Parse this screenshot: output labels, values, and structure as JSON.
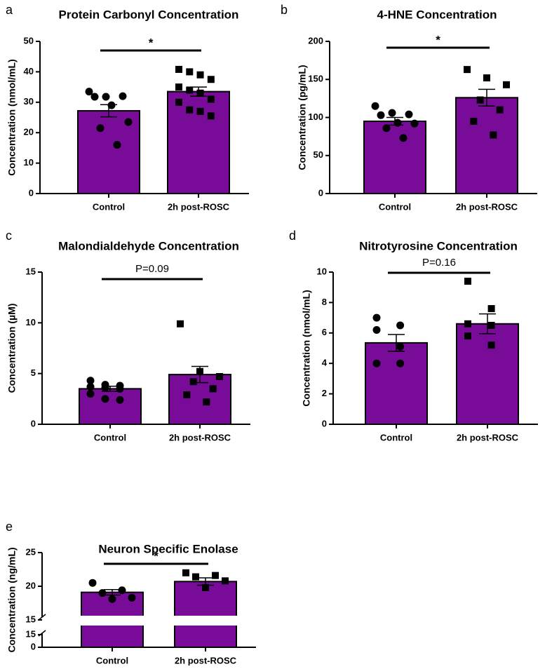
{
  "chart_data": [
    {
      "type": "bar",
      "panel": "a",
      "title": "Protein Carbonyl Concentration",
      "y_label": "Concentration (nmol/mL)",
      "categories": [
        "Control",
        "2h post-ROSC"
      ],
      "values": [
        27.2,
        33.5
      ],
      "errors": [
        2.0,
        1.5
      ],
      "points": [
        [
          33.5,
          31.8,
          32,
          31.8,
          29,
          23.5,
          21.5,
          16
        ],
        [
          40.8,
          40,
          39,
          37.5,
          35,
          34,
          33,
          31,
          30,
          27.5,
          27,
          25.5
        ]
      ],
      "markers": [
        "circle",
        "square"
      ],
      "color": "#780c99",
      "annotation": "*",
      "ylim": [
        0,
        50
      ],
      "yticks": [
        0,
        10,
        20,
        30,
        40,
        50
      ]
    },
    {
      "type": "bar",
      "panel": "b",
      "title": "4-HNE Concentration",
      "y_label": "Concentration (pg/mL)",
      "categories": [
        "Control",
        "2h post-ROSC"
      ],
      "values": [
        95,
        126
      ],
      "errors": [
        5,
        11
      ],
      "points": [
        [
          115,
          106,
          104,
          103,
          93,
          92,
          86,
          73
        ],
        [
          163,
          152,
          143,
          123,
          110,
          95,
          77
        ]
      ],
      "markers": [
        "circle",
        "square"
      ],
      "color": "#780c99",
      "annotation": "*",
      "ylim": [
        0,
        200
      ],
      "yticks": [
        0,
        50,
        100,
        150,
        200
      ]
    },
    {
      "type": "bar",
      "panel": "c",
      "title": "Malondialdehyde Concentration",
      "y_label": "Concentration (µM)",
      "categories": [
        "Control",
        "2h post-ROSC"
      ],
      "values": [
        3.5,
        4.9
      ],
      "errors": [
        0.25,
        0.8
      ],
      "points": [
        [
          4.3,
          3.9,
          3.8,
          3.7,
          3.6,
          3.5,
          3.0,
          2.5,
          2.4
        ],
        [
          9.9,
          5.2,
          4.7,
          4.2,
          3.5,
          2.9,
          2.2
        ]
      ],
      "markers": [
        "circle",
        "square"
      ],
      "color": "#780c99",
      "annotation": "P=0.09",
      "ylim": [
        0,
        15
      ],
      "yticks": [
        0,
        5,
        10,
        15
      ]
    },
    {
      "type": "bar",
      "panel": "d",
      "title": "Nitrotyrosine Concentration",
      "y_label": "Concentration (nmol/mL)",
      "categories": [
        "Control",
        "2h post-ROSC"
      ],
      "values": [
        5.35,
        6.6
      ],
      "errors": [
        0.55,
        0.65
      ],
      "points": [
        [
          7.0,
          6.5,
          6.2,
          5.1,
          4.0,
          4.0
        ],
        [
          9.4,
          7.6,
          6.6,
          6.5,
          5.8,
          5.2
        ]
      ],
      "markers": [
        "circle",
        "square"
      ],
      "color": "#780c99",
      "annotation": "P=0.16",
      "ylim": [
        0,
        10
      ],
      "yticks": [
        0,
        2,
        4,
        6,
        8,
        10
      ]
    },
    {
      "type": "bar",
      "panel": "e",
      "title": "Neuron Specific Enolase",
      "y_label": "Concentration (ng/mL)",
      "categories": [
        "Control",
        "2h post-ROSC"
      ],
      "values": [
        19.1,
        20.7
      ],
      "errors": [
        0.4,
        0.55
      ],
      "points": [
        [
          20.5,
          19.4,
          19.0,
          18.3,
          18.1
        ],
        [
          22.0,
          21.6,
          21.4,
          20.8,
          19.8
        ]
      ],
      "markers": [
        "circle",
        "square"
      ],
      "color": "#780c99",
      "annotation": "*",
      "ylim": [
        15,
        25
      ],
      "yticks": [
        15,
        20,
        25
      ],
      "axis_break": {
        "ylim": [
          0,
          15
        ],
        "yticks": [
          0,
          15
        ]
      }
    }
  ]
}
